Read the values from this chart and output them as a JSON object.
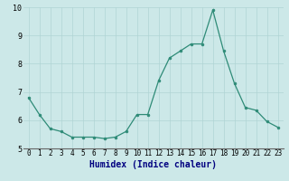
{
  "x": [
    0,
    1,
    2,
    3,
    4,
    5,
    6,
    7,
    8,
    9,
    10,
    11,
    12,
    13,
    14,
    15,
    16,
    17,
    18,
    19,
    20,
    21,
    22,
    23
  ],
  "y": [
    6.8,
    6.2,
    5.7,
    5.6,
    5.4,
    5.4,
    5.4,
    5.35,
    5.4,
    5.6,
    6.2,
    6.2,
    7.4,
    8.2,
    8.45,
    8.7,
    8.7,
    9.9,
    8.45,
    7.3,
    6.45,
    6.35,
    5.95,
    5.75
  ],
  "xlabel": "Humidex (Indice chaleur)",
  "ylim": [
    5,
    10
  ],
  "xlim": [
    -0.5,
    23.5
  ],
  "yticks": [
    5,
    6,
    7,
    8,
    9,
    10
  ],
  "xticks": [
    0,
    1,
    2,
    3,
    4,
    5,
    6,
    7,
    8,
    9,
    10,
    11,
    12,
    13,
    14,
    15,
    16,
    17,
    18,
    19,
    20,
    21,
    22,
    23
  ],
  "line_color": "#2e8b77",
  "marker_color": "#2e8b77",
  "bg_color": "#cce8e8",
  "grid_color": "#b0d4d4",
  "xlabel_color": "#000080",
  "xlabel_fontsize": 7.0,
  "tick_fontsize": 5.5
}
